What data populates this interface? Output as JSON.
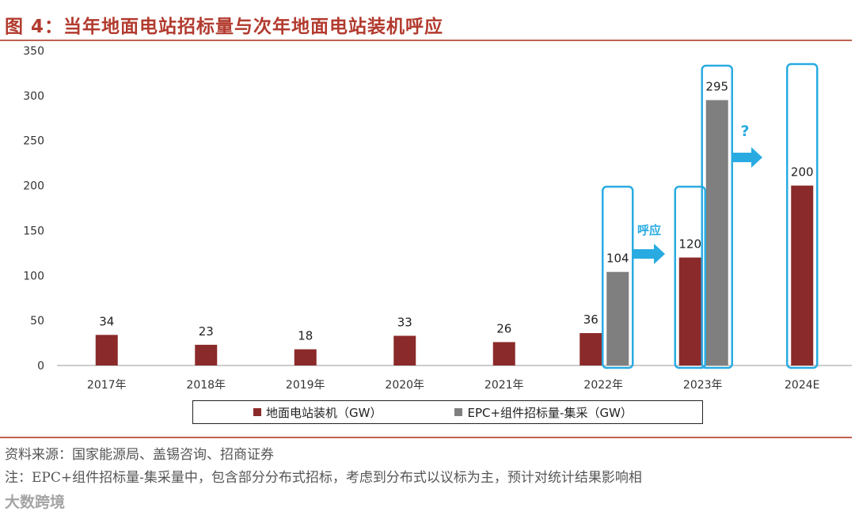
{
  "header": {
    "title": "图 4：当年地面电站招标量与次年地面电站装机呼应"
  },
  "colors": {
    "series1": "#8b2a2a",
    "series2": "#7f7f7f",
    "highlight": "#29abe2",
    "accent": "#b23a2e"
  },
  "chart_data": {
    "type": "bar",
    "categories": [
      "2017年",
      "2018年",
      "2019年",
      "2020年",
      "2021年",
      "2022年",
      "2023年",
      "2024E"
    ],
    "series": [
      {
        "name": "地面电站装机（GW）",
        "values": [
          34,
          23,
          18,
          33,
          26,
          36,
          120,
          200
        ]
      },
      {
        "name": "EPC+组件招标量-集采（GW）",
        "values": [
          null,
          null,
          null,
          null,
          null,
          104,
          295,
          null
        ]
      }
    ],
    "ylim": [
      0,
      350
    ],
    "yticks": [
      0,
      50,
      100,
      150,
      200,
      250,
      300,
      350
    ],
    "annotations": {
      "arrow1": "呼应",
      "arrow2": "?"
    },
    "title": "",
    "xlabel": "",
    "ylabel": ""
  },
  "footer": {
    "source": "资料来源：国家能源局、盖锡咨询、招商证券",
    "note": "注：EPC+组件招标量-集采量中，包含部分分布式招标，考虑到分布式以议标为主，预计对统计结果影响相",
    "watermark": "大数跨境"
  }
}
